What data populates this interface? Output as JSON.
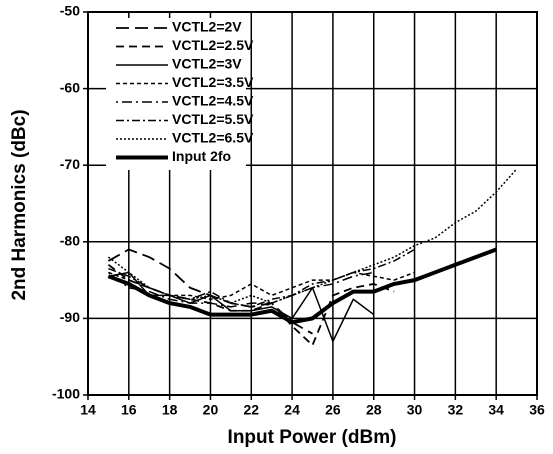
{
  "chart_data": {
    "type": "line",
    "xlabel": "Input Power (dBm)",
    "ylabel": "2nd Harmonics (dBc)",
    "xlim": [
      14,
      36
    ],
    "xticks": [
      14,
      16,
      18,
      20,
      22,
      24,
      26,
      28,
      30,
      32,
      34,
      36
    ],
    "ylim": [
      -100,
      -50
    ],
    "yticks": [
      -100,
      -90,
      -80,
      -70,
      -60,
      -50
    ],
    "grid": true,
    "legend": "upper left",
    "series": [
      {
        "name": "VCTL2=2V",
        "color": "#000000",
        "dash": "13,6",
        "width": 1.8,
        "x": [
          15,
          16,
          17,
          18,
          19,
          20,
          21,
          22,
          23,
          24,
          25
        ],
        "values": [
          -82.5,
          -81,
          -82,
          -83.5,
          -86,
          -87,
          -88,
          -88.5,
          -88,
          -90.5,
          -92
        ]
      },
      {
        "name": "VCTL2=2.5V",
        "color": "#000000",
        "dash": "8,5",
        "width": 1.8,
        "x": [
          15,
          16,
          17,
          18,
          19,
          20,
          21,
          22,
          23,
          24,
          25,
          26,
          27,
          28,
          29
        ],
        "values": [
          -83,
          -85,
          -86,
          -87,
          -87.5,
          -88,
          -89,
          -89,
          -88,
          -91,
          -93.5,
          -87,
          -86,
          -85.5,
          -86.5
        ]
      },
      {
        "name": "VCTL2=3V",
        "color": "#000000",
        "dash": "",
        "width": 1.5,
        "x": [
          15,
          16,
          17,
          18,
          19,
          20,
          21,
          22,
          23,
          24,
          25,
          26,
          27,
          28
        ],
        "values": [
          -84.5,
          -84,
          -87,
          -87,
          -88,
          -87,
          -89,
          -89,
          -88.5,
          -90,
          -86,
          -93,
          -87.5,
          -89.5
        ]
      },
      {
        "name": "VCTL2=3.5V",
        "color": "#000000",
        "dash": "4,3",
        "width": 1.5,
        "x": [
          15,
          16,
          17,
          18,
          19,
          20,
          21,
          22,
          23,
          24,
          25,
          26,
          27,
          28,
          29,
          30
        ],
        "values": [
          -84,
          -85,
          -86,
          -87,
          -87,
          -87.5,
          -87,
          -85.5,
          -87,
          -86,
          -85,
          -85,
          -84,
          -84.5,
          -85,
          -84
        ]
      },
      {
        "name": "VCTL2=4.5V",
        "color": "#000000",
        "dash": "2,4,10,4",
        "width": 1.5,
        "x": [
          15,
          16,
          17,
          18,
          19,
          20,
          21,
          22,
          23,
          24,
          25,
          26,
          27,
          28
        ],
        "values": [
          -84,
          -86,
          -86.5,
          -87.5,
          -88,
          -88,
          -88.5,
          -88,
          -88,
          -87,
          -86,
          -85.5,
          -84.5,
          -84
        ]
      },
      {
        "name": "VCTL2=5.5V",
        "color": "#000000",
        "dash": "8,3,2,3",
        "width": 1.5,
        "x": [
          15,
          16,
          17,
          18,
          19,
          20,
          21,
          22,
          23,
          24,
          25,
          26,
          27,
          28,
          29,
          30
        ],
        "values": [
          -83.5,
          -84.5,
          -86,
          -87,
          -87.5,
          -86.5,
          -88,
          -88.5,
          -87.5,
          -87,
          -85.5,
          -85,
          -84,
          -83.5,
          -82.5,
          -81
        ]
      },
      {
        "name": "VCTL2=6.5V",
        "color": "#000000",
        "dash": "2,2",
        "width": 1.5,
        "x": [
          15,
          16,
          17,
          18,
          19,
          20,
          21,
          22,
          23,
          24,
          25,
          26,
          27,
          28,
          29,
          30,
          31,
          32,
          33,
          34,
          35
        ],
        "values": [
          -82,
          -84,
          -86,
          -87,
          -87.5,
          -87,
          -88,
          -87,
          -88,
          -87,
          -86,
          -85,
          -84,
          -83,
          -82,
          -80.5,
          -79.5,
          -77.5,
          -76,
          -73.5,
          -70.5
        ]
      },
      {
        "name": "Input 2fo",
        "color": "#000000",
        "dash": "",
        "width": 4,
        "x": [
          15,
          16,
          17,
          18,
          19,
          20,
          21,
          22,
          23,
          24,
          25,
          26,
          27,
          28,
          29,
          30,
          31,
          32,
          33,
          34
        ],
        "values": [
          -84.5,
          -85.5,
          -87,
          -88,
          -88.5,
          -89.5,
          -89.5,
          -89.5,
          -89,
          -90.5,
          -90,
          -88,
          -86.5,
          -86.5,
          -85.5,
          -85,
          -84,
          -83,
          -82,
          -81
        ]
      }
    ]
  }
}
